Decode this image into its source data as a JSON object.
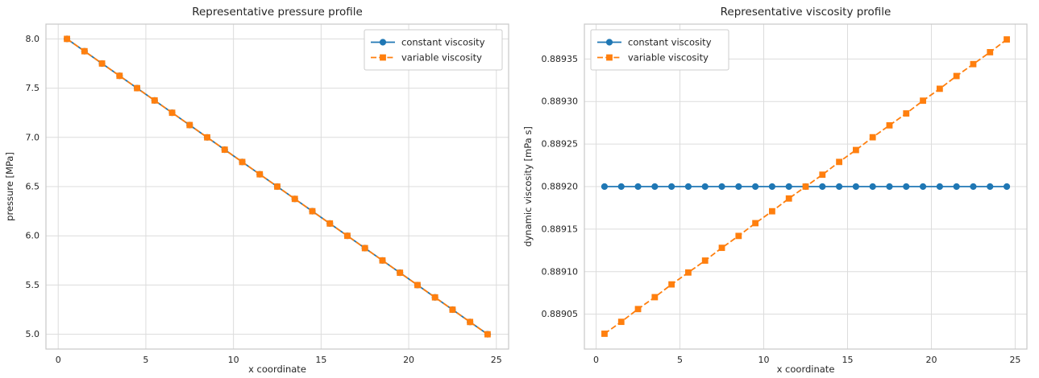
{
  "palette": {
    "blue": "#1f77b4",
    "orange": "#ff7f0e",
    "grid": "#dcdcdc",
    "spine": "#c8c8c8",
    "legend_border": "#cccccc",
    "text": "#262626",
    "background": "#ffffff"
  },
  "chart_data": [
    {
      "id": "pressure-profile",
      "type": "line",
      "title": "Representative pressure profile",
      "xlabel": "x coordinate",
      "ylabel": "pressure [MPa]",
      "xlim": [
        -0.7,
        25.7
      ],
      "ylim": [
        4.85,
        8.15
      ],
      "xticks": [
        0,
        5,
        10,
        15,
        20,
        25
      ],
      "xtick_labels": [
        "0",
        "5",
        "10",
        "15",
        "20",
        "25"
      ],
      "yticks": [
        5.0,
        5.5,
        6.0,
        6.5,
        7.0,
        7.5,
        8.0
      ],
      "ytick_labels": [
        "5.0",
        "5.5",
        "6.0",
        "6.5",
        "7.0",
        "7.5",
        "8.0"
      ],
      "grid": true,
      "legend_position": "upper-right",
      "x": [
        0.5,
        1.5,
        2.5,
        3.5,
        4.5,
        5.5,
        6.5,
        7.5,
        8.5,
        9.5,
        10.5,
        11.5,
        12.5,
        13.5,
        14.5,
        15.5,
        16.5,
        17.5,
        18.5,
        19.5,
        20.5,
        21.5,
        22.5,
        23.5,
        24.5
      ],
      "series": [
        {
          "name": "constant viscosity",
          "color_key": "blue",
          "marker": "circle",
          "line_style": "solid",
          "values": [
            8.0,
            7.875,
            7.75,
            7.625,
            7.5,
            7.375,
            7.25,
            7.125,
            7.0,
            6.875,
            6.75,
            6.625,
            6.5,
            6.375,
            6.25,
            6.125,
            6.0,
            5.875,
            5.75,
            5.625,
            5.5,
            5.375,
            5.25,
            5.125,
            5.0
          ]
        },
        {
          "name": "variable viscosity",
          "color_key": "orange",
          "marker": "square",
          "line_style": "dashed",
          "values": [
            8.0,
            7.875,
            7.75,
            7.625,
            7.5,
            7.375,
            7.25,
            7.125,
            7.0,
            6.875,
            6.75,
            6.625,
            6.5,
            6.375,
            6.25,
            6.125,
            6.0,
            5.875,
            5.75,
            5.625,
            5.5,
            5.375,
            5.25,
            5.125,
            5.0
          ]
        }
      ]
    },
    {
      "id": "viscosity-profile",
      "type": "line",
      "title": "Representative viscosity profile",
      "xlabel": "x coordinate",
      "ylabel": "dynamic viscosity [mPa s]",
      "xlim": [
        -0.7,
        25.7
      ],
      "ylim": [
        0.889009,
        0.889391
      ],
      "xticks": [
        0,
        5,
        10,
        15,
        20,
        25
      ],
      "xtick_labels": [
        "0",
        "5",
        "10",
        "15",
        "20",
        "25"
      ],
      "yticks": [
        0.88905,
        0.8891,
        0.88915,
        0.8892,
        0.88925,
        0.8893,
        0.88935
      ],
      "ytick_labels": [
        "0.88905",
        "0.88910",
        "0.88915",
        "0.88920",
        "0.88925",
        "0.88930",
        "0.88935"
      ],
      "grid": true,
      "legend_position": "upper-left",
      "x": [
        0.5,
        1.5,
        2.5,
        3.5,
        4.5,
        5.5,
        6.5,
        7.5,
        8.5,
        9.5,
        10.5,
        11.5,
        12.5,
        13.5,
        14.5,
        15.5,
        16.5,
        17.5,
        18.5,
        19.5,
        20.5,
        21.5,
        22.5,
        23.5,
        24.5
      ],
      "series": [
        {
          "name": "constant viscosity",
          "color_key": "blue",
          "marker": "circle",
          "line_style": "solid",
          "values": [
            0.8892,
            0.8892,
            0.8892,
            0.8892,
            0.8892,
            0.8892,
            0.8892,
            0.8892,
            0.8892,
            0.8892,
            0.8892,
            0.8892,
            0.8892,
            0.8892,
            0.8892,
            0.8892,
            0.8892,
            0.8892,
            0.8892,
            0.8892,
            0.8892,
            0.8892,
            0.8892,
            0.8892,
            0.8892
          ]
        },
        {
          "name": "variable viscosity",
          "color_key": "orange",
          "marker": "square",
          "line_style": "dashed",
          "values": [
            0.889027,
            0.889041,
            0.889056,
            0.88907,
            0.889085,
            0.889099,
            0.889113,
            0.889128,
            0.889142,
            0.889157,
            0.889171,
            0.889186,
            0.8892,
            0.889214,
            0.889229,
            0.889243,
            0.889258,
            0.889272,
            0.889286,
            0.889301,
            0.889315,
            0.88933,
            0.889344,
            0.889358,
            0.889373
          ]
        }
      ]
    }
  ]
}
